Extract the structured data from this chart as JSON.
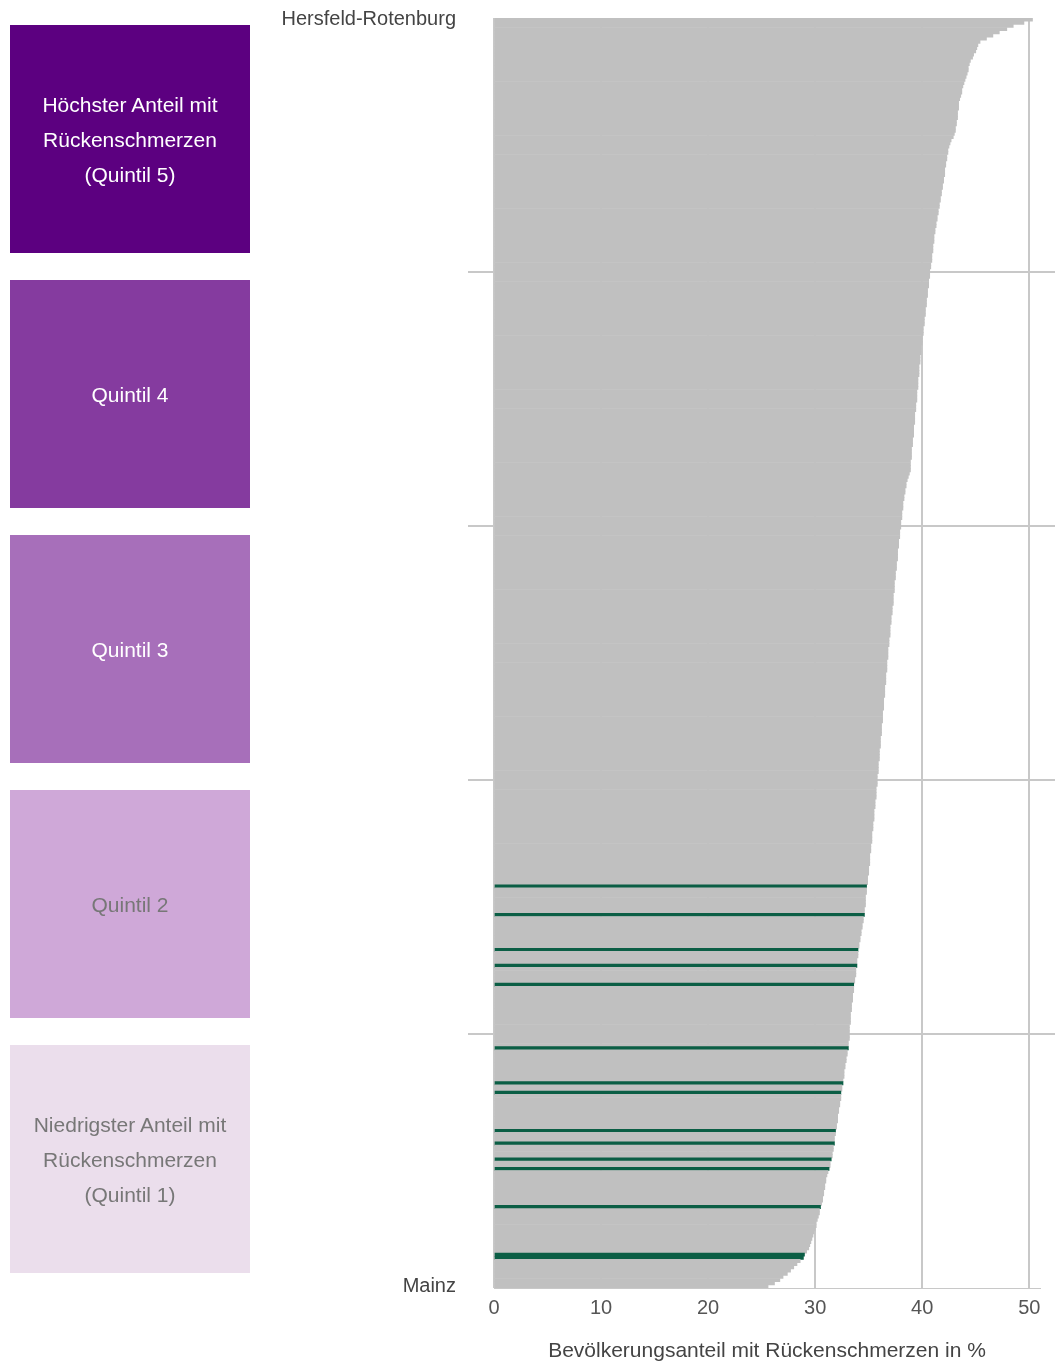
{
  "chart_data": {
    "type": "bar",
    "orientation": "horizontal",
    "xlabel": "Bevölkerungsanteil mit Rückenschmerzen in %",
    "categories": [
      "Hersfeld-Rotenburg",
      null,
      null,
      null,
      null,
      null,
      null,
      null,
      null,
      null,
      null,
      null,
      null,
      null,
      null,
      null,
      null,
      null,
      null,
      null,
      null,
      null,
      null,
      null,
      null,
      null,
      null,
      null,
      null,
      null,
      null,
      null,
      null,
      null,
      null,
      null,
      null,
      null,
      null,
      null,
      null,
      null,
      null,
      null,
      null,
      null,
      null,
      null,
      null,
      null,
      null,
      null,
      null,
      null,
      null,
      null,
      null,
      null,
      null,
      null,
      null,
      null,
      null,
      null,
      null,
      null,
      null,
      null,
      null,
      null,
      null,
      null,
      null,
      null,
      null,
      null,
      null,
      null,
      null,
      null,
      null,
      null,
      null,
      null,
      null,
      null,
      null,
      null,
      null,
      null,
      null,
      null,
      null,
      null,
      null,
      null,
      null,
      null,
      null,
      null,
      null,
      null,
      null,
      null,
      null,
      null,
      null,
      null,
      null,
      null,
      null,
      null,
      null,
      null,
      null,
      null,
      null,
      null,
      null,
      null,
      null,
      null,
      null,
      null,
      null,
      null,
      null,
      null,
      null,
      null,
      null,
      null,
      null,
      null,
      null,
      null,
      null,
      null,
      null,
      null,
      null,
      null,
      null,
      null,
      null,
      null,
      null,
      null,
      null,
      null,
      null,
      null,
      null,
      null,
      null,
      null,
      null,
      null,
      null,
      null,
      null,
      null,
      null,
      null,
      null,
      null,
      null,
      null,
      null,
      null,
      null,
      null,
      null,
      null,
      null,
      null,
      null,
      null,
      null,
      null,
      null,
      null,
      null,
      null,
      null,
      null,
      null,
      null,
      null,
      null,
      null,
      null,
      null,
      null,
      null,
      null,
      null,
      null,
      null,
      null,
      null,
      null,
      null,
      null,
      null,
      null,
      null,
      null,
      null,
      null,
      null,
      null,
      null,
      null,
      null,
      null,
      null,
      null,
      null,
      null,
      null,
      null,
      null,
      null,
      null,
      null,
      null,
      null,
      null,
      null,
      null,
      null,
      null,
      null,
      null,
      null,
      null,
      null,
      null,
      null,
      null,
      null,
      null,
      null,
      null,
      null,
      null,
      null,
      null,
      null,
      null,
      null,
      null,
      null,
      null,
      null,
      null,
      null,
      null,
      null,
      null,
      null,
      null,
      null,
      null,
      null,
      null,
      null,
      null,
      null,
      null,
      null,
      null,
      null,
      null,
      null,
      null,
      null,
      null,
      null,
      null,
      null,
      null,
      null,
      null,
      null,
      null,
      null,
      null,
      null,
      null,
      null,
      null,
      null,
      null,
      null,
      null,
      null,
      null,
      null,
      null,
      null,
      null,
      null,
      null,
      null,
      null,
      null,
      null,
      null,
      null,
      null,
      null,
      null,
      null,
      null,
      null,
      null,
      null,
      null,
      null,
      null,
      null,
      null,
      null,
      null,
      null,
      null,
      null,
      null,
      null,
      null,
      null,
      null,
      null,
      null,
      null,
      null,
      null,
      null,
      null,
      null,
      null,
      null,
      null,
      null,
      null,
      null,
      null,
      null,
      null,
      null,
      null,
      null,
      null,
      null,
      null,
      null,
      null,
      null,
      null,
      null,
      null,
      null,
      null,
      null,
      null,
      null,
      null,
      null,
      null,
      null,
      null,
      null,
      null,
      null,
      null,
      null,
      null,
      null,
      null,
      null,
      null,
      null,
      null,
      null,
      null,
      null,
      null,
      null,
      null,
      null,
      null,
      null,
      null,
      null,
      null,
      null,
      null,
      "Mainz"
    ],
    "values": [
      50.3,
      49.5,
      48.5,
      47.9,
      47.2,
      46.6,
      46.0,
      45.4,
      45.2,
      45.1,
      45.0,
      44.8,
      44.7,
      44.5,
      44.4,
      44.3,
      44.3,
      44.2,
      44.1,
      44.0,
      43.9,
      43.8,
      43.7,
      43.7,
      43.6,
      43.5,
      43.4,
      43.4,
      43.4,
      43.3,
      43.3,
      43.3,
      43.2,
      43.2,
      43.1,
      43.1,
      43.0,
      42.9,
      42.7,
      42.6,
      42.5,
      42.4,
      42.4,
      42.3,
      42.3,
      42.2,
      42.2,
      42.1,
      42.1,
      42.1,
      42.0,
      42.0,
      41.9,
      41.9,
      41.8,
      41.8,
      41.7,
      41.7,
      41.6,
      41.6,
      41.5,
      41.5,
      41.4,
      41.4,
      41.3,
      41.3,
      41.2,
      41.2,
      41.1,
      41.1,
      41.1,
      41.0,
      41.0,
      41.0,
      40.9,
      40.9,
      40.9,
      40.8,
      40.8,
      40.7,
      40.7,
      40.7,
      40.6,
      40.6,
      40.6,
      40.5,
      40.5,
      40.5,
      40.4,
      40.4,
      40.4,
      40.3,
      40.3,
      40.3,
      40.2,
      40.2,
      40.2,
      40.1,
      40.1,
      40.1,
      40.0,
      40.0,
      40.0,
      39.9,
      39.9,
      39.9,
      39.8,
      39.8,
      39.8,
      39.7,
      39.7,
      39.7,
      39.7,
      39.6,
      39.6,
      39.6,
      39.6,
      39.5,
      39.5,
      39.5,
      39.5,
      39.4,
      39.4,
      39.4,
      39.3,
      39.3,
      39.3,
      39.3,
      39.2,
      39.2,
      39.2,
      39.2,
      39.1,
      39.1,
      39.1,
      39.0,
      39.0,
      39.0,
      39.0,
      38.9,
      38.9,
      38.9,
      38.9,
      38.8,
      38.7,
      38.6,
      38.5,
      38.5,
      38.4,
      38.4,
      38.3,
      38.3,
      38.2,
      38.2,
      38.2,
      38.1,
      38.1,
      38.1,
      38.0,
      38.0,
      38.0,
      37.9,
      37.9,
      37.9,
      37.8,
      37.8,
      37.8,
      37.7,
      37.7,
      37.7,
      37.7,
      37.6,
      37.6,
      37.6,
      37.5,
      37.5,
      37.5,
      37.4,
      37.4,
      37.4,
      37.4,
      37.3,
      37.3,
      37.3,
      37.3,
      37.2,
      37.2,
      37.2,
      37.1,
      37.1,
      37.1,
      37.0,
      37.0,
      37.0,
      37.0,
      36.9,
      36.9,
      36.9,
      36.8,
      36.8,
      36.8,
      36.8,
      36.7,
      36.7,
      36.7,
      36.7,
      36.6,
      36.6,
      36.6,
      36.6,
      36.5,
      36.5,
      36.5,
      36.5,
      36.4,
      36.4,
      36.4,
      36.4,
      36.3,
      36.3,
      36.3,
      36.3,
      36.2,
      36.2,
      36.2,
      36.2,
      36.1,
      36.1,
      36.1,
      36.1,
      36.0,
      36.0,
      36.0,
      36.0,
      35.9,
      35.9,
      35.9,
      35.9,
      35.8,
      35.8,
      35.8,
      35.8,
      35.7,
      35.7,
      35.7,
      35.7,
      35.6,
      35.6,
      35.6,
      35.5,
      35.5,
      35.5,
      35.5,
      35.4,
      35.4,
      35.4,
      35.3,
      35.3,
      35.3,
      35.3,
      35.2,
      35.2,
      35.2,
      35.1,
      35.1,
      35.1,
      35.1,
      35.0,
      35.0,
      35.0,
      34.9,
      34.9,
      34.9,
      34.8,
      34.8,
      34.8,
      34.7,
      34.7,
      34.7,
      34.7,
      34.6,
      34.6,
      34.6,
      34.5,
      34.5,
      34.4,
      34.4,
      34.3,
      34.3,
      34.2,
      34.2,
      34.1,
      34.1,
      34.0,
      34.0,
      34.0,
      33.9,
      33.9,
      33.9,
      33.8,
      33.8,
      33.8,
      33.7,
      33.7,
      33.6,
      33.6,
      33.6,
      33.5,
      33.5,
      33.5,
      33.4,
      33.4,
      33.4,
      33.3,
      33.3,
      33.3,
      33.3,
      33.2,
      33.2,
      33.2,
      33.2,
      33.2,
      33.1,
      33.1,
      33.1,
      33.0,
      33.0,
      32.9,
      32.9,
      32.8,
      32.8,
      32.7,
      32.7,
      32.7,
      32.6,
      32.6,
      32.5,
      32.5,
      32.4,
      32.4,
      32.4,
      32.3,
      32.3,
      32.2,
      32.2,
      32.1,
      32.1,
      32.1,
      32.0,
      32.0,
      31.9,
      31.9,
      31.8,
      31.8,
      31.8,
      31.7,
      31.7,
      31.6,
      31.6,
      31.5,
      31.4,
      31.4,
      31.3,
      31.2,
      31.1,
      31.0,
      31.0,
      30.9,
      30.9,
      30.8,
      30.8,
      30.7,
      30.7,
      30.6,
      30.5,
      30.4,
      30.4,
      30.3,
      30.2,
      30.1,
      30.1,
      30.0,
      29.9,
      29.8,
      29.7,
      29.6,
      29.5,
      29.4,
      29.2,
      29.0,
      28.9,
      28.6,
      28.3,
      28.0,
      27.7,
      27.4,
      27.0,
      26.7,
      26.2,
      25.6
    ],
    "colors": [
      "#c0c0c0",
      "#c0c0c0",
      "#c0c0c0",
      "#c0c0c0",
      "#c0c0c0",
      "#c0c0c0",
      "#c0c0c0",
      "#c0c0c0",
      "#c0c0c0",
      "#c0c0c0",
      "#c0c0c0",
      "#c0c0c0",
      "#c0c0c0",
      "#c0c0c0",
      "#c0c0c0",
      "#c0c0c0",
      "#c0c0c0",
      "#c0c0c0",
      "#c0c0c0",
      "#c0c0c0",
      "#c0c0c0",
      "#c0c0c0",
      "#c0c0c0",
      "#c0c0c0",
      "#c0c0c0",
      "#c0c0c0",
      "#c0c0c0",
      "#c0c0c0",
      "#c0c0c0",
      "#c0c0c0",
      "#c0c0c0",
      "#c0c0c0",
      "#c0c0c0",
      "#c0c0c0",
      "#c0c0c0",
      "#c0c0c0",
      "#c0c0c0",
      "#c0c0c0",
      "#c0c0c0",
      "#c0c0c0",
      "#c0c0c0",
      "#c0c0c0",
      "#c0c0c0",
      "#c0c0c0",
      "#c0c0c0",
      "#c0c0c0",
      "#c0c0c0",
      "#c0c0c0",
      "#c0c0c0",
      "#c0c0c0",
      "#c0c0c0",
      "#c0c0c0",
      "#c0c0c0",
      "#c0c0c0",
      "#c0c0c0",
      "#c0c0c0",
      "#c0c0c0",
      "#c0c0c0",
      "#c0c0c0",
      "#c0c0c0",
      "#c0c0c0",
      "#c0c0c0",
      "#c0c0c0",
      "#c0c0c0",
      "#c0c0c0",
      "#c0c0c0",
      "#c0c0c0",
      "#c0c0c0",
      "#c0c0c0",
      "#c0c0c0",
      "#c0c0c0",
      "#c0c0c0",
      "#c0c0c0",
      "#c0c0c0",
      "#c0c0c0",
      "#c0c0c0",
      "#c0c0c0",
      "#c0c0c0",
      "#c0c0c0",
      "#c0c0c0",
      "#c0c0c0",
      "#c0c0c0",
      "#c0c0c0",
      "#c0c0c0",
      "#c0c0c0",
      "#c0c0c0",
      "#c0c0c0",
      "#c0c0c0",
      "#c0c0c0",
      "#c0c0c0",
      "#c0c0c0",
      "#c0c0c0",
      "#c0c0c0",
      "#c0c0c0",
      "#c0c0c0",
      "#c0c0c0",
      "#c0c0c0",
      "#c0c0c0",
      "#c0c0c0",
      "#c0c0c0",
      "#c0c0c0",
      "#c0c0c0",
      "#c0c0c0",
      "#c0c0c0",
      "#c0c0c0",
      "#c0c0c0",
      "#c0c0c0",
      "#c0c0c0",
      "#c0c0c0",
      "#c0c0c0",
      "#c0c0c0",
      "#c0c0c0",
      "#c0c0c0",
      "#c0c0c0",
      "#c0c0c0",
      "#c0c0c0",
      "#c0c0c0",
      "#c0c0c0",
      "#c0c0c0",
      "#c0c0c0",
      "#c0c0c0",
      "#c0c0c0",
      "#c0c0c0",
      "#c0c0c0",
      "#c0c0c0",
      "#c0c0c0",
      "#c0c0c0",
      "#c0c0c0",
      "#c0c0c0",
      "#c0c0c0",
      "#c0c0c0",
      "#c0c0c0",
      "#c0c0c0",
      "#c0c0c0",
      "#c0c0c0",
      "#c0c0c0",
      "#c0c0c0",
      "#c0c0c0",
      "#c0c0c0",
      "#c0c0c0",
      "#c0c0c0",
      "#c0c0c0",
      "#c0c0c0",
      "#c0c0c0",
      "#c0c0c0",
      "#c0c0c0",
      "#c0c0c0",
      "#c0c0c0",
      "#c0c0c0",
      "#c0c0c0",
      "#c0c0c0",
      "#c0c0c0",
      "#c0c0c0",
      "#c0c0c0",
      "#c0c0c0",
      "#c0c0c0",
      "#c0c0c0",
      "#c0c0c0",
      "#c0c0c0",
      "#c0c0c0",
      "#c0c0c0",
      "#c0c0c0",
      "#c0c0c0",
      "#c0c0c0",
      "#c0c0c0",
      "#c0c0c0",
      "#c0c0c0",
      "#c0c0c0",
      "#c0c0c0",
      "#c0c0c0",
      "#c0c0c0",
      "#c0c0c0",
      "#c0c0c0",
      "#c0c0c0",
      "#c0c0c0",
      "#c0c0c0",
      "#c0c0c0",
      "#c0c0c0",
      "#c0c0c0",
      "#c0c0c0",
      "#c0c0c0",
      "#c0c0c0",
      "#c0c0c0",
      "#c0c0c0",
      "#c0c0c0",
      "#c0c0c0",
      "#c0c0c0",
      "#c0c0c0",
      "#c0c0c0",
      "#c0c0c0",
      "#c0c0c0",
      "#c0c0c0",
      "#c0c0c0",
      "#c0c0c0",
      "#c0c0c0",
      "#c0c0c0",
      "#c0c0c0",
      "#c0c0c0",
      "#c0c0c0",
      "#c0c0c0",
      "#c0c0c0",
      "#c0c0c0",
      "#c0c0c0",
      "#c0c0c0",
      "#c0c0c0",
      "#c0c0c0",
      "#c0c0c0",
      "#c0c0c0",
      "#c0c0c0",
      "#c0c0c0",
      "#c0c0c0",
      "#c0c0c0",
      "#c0c0c0",
      "#c0c0c0",
      "#c0c0c0",
      "#c0c0c0",
      "#c0c0c0",
      "#c0c0c0",
      "#c0c0c0",
      "#c0c0c0",
      "#c0c0c0",
      "#c0c0c0",
      "#c0c0c0",
      "#c0c0c0",
      "#c0c0c0",
      "#c0c0c0",
      "#c0c0c0",
      "#c0c0c0",
      "#c0c0c0",
      "#c0c0c0",
      "#c0c0c0",
      "#c0c0c0",
      "#c0c0c0",
      "#c0c0c0",
      "#c0c0c0",
      "#c0c0c0",
      "#c0c0c0",
      "#c0c0c0",
      "#c0c0c0",
      "#c0c0c0",
      "#c0c0c0",
      "#c0c0c0",
      "#c0c0c0",
      "#c0c0c0",
      "#c0c0c0",
      "#c0c0c0",
      "#c0c0c0",
      "#c0c0c0",
      "#c0c0c0",
      "#c0c0c0",
      "#c0c0c0",
      "#c0c0c0",
      "#c0c0c0",
      "#c0c0c0",
      "#c0c0c0",
      "#c0c0c0",
      "#c0c0c0",
      "#c0c0c0",
      "#c0c0c0",
      "#c0c0c0",
      "#c0c0c0",
      "#c0c0c0",
      "#c0c0c0",
      "#c0c0c0",
      "#c0c0c0",
      "#c0c0c0",
      "#c0c0c0",
      "#c0c0c0",
      "#c0c0c0",
      "#c0c0c0",
      "#c0c0c0",
      "#c0c0c0",
      "#c0c0c0",
      "#0b5e45",
      "#c0c0c0",
      "#c0c0c0",
      "#c0c0c0",
      "#c0c0c0",
      "#c0c0c0",
      "#c0c0c0",
      "#c0c0c0",
      "#c0c0c0",
      "#0b5e45",
      "#c0c0c0",
      "#c0c0c0",
      "#c0c0c0",
      "#c0c0c0",
      "#c0c0c0",
      "#c0c0c0",
      "#c0c0c0",
      "#c0c0c0",
      "#c0c0c0",
      "#c0c0c0",
      "#0b5e45",
      "#c0c0c0",
      "#c0c0c0",
      "#c0c0c0",
      "#c0c0c0",
      "#0b5e45",
      "#c0c0c0",
      "#c0c0c0",
      "#c0c0c0",
      "#c0c0c0",
      "#c0c0c0",
      "#0b5e45",
      "#c0c0c0",
      "#c0c0c0",
      "#c0c0c0",
      "#c0c0c0",
      "#c0c0c0",
      "#c0c0c0",
      "#c0c0c0",
      "#c0c0c0",
      "#c0c0c0",
      "#c0c0c0",
      "#c0c0c0",
      "#c0c0c0",
      "#c0c0c0",
      "#c0c0c0",
      "#c0c0c0",
      "#c0c0c0",
      "#c0c0c0",
      "#c0c0c0",
      "#c0c0c0",
      "#0b5e45",
      "#c0c0c0",
      "#c0c0c0",
      "#c0c0c0",
      "#c0c0c0",
      "#c0c0c0",
      "#c0c0c0",
      "#c0c0c0",
      "#c0c0c0",
      "#c0c0c0",
      "#c0c0c0",
      "#0b5e45",
      "#c0c0c0",
      "#c0c0c0",
      "#0b5e45",
      "#c0c0c0",
      "#c0c0c0",
      "#c0c0c0",
      "#c0c0c0",
      "#c0c0c0",
      "#c0c0c0",
      "#c0c0c0",
      "#c0c0c0",
      "#c0c0c0",
      "#c0c0c0",
      "#c0c0c0",
      "#0b5e45",
      "#c0c0c0",
      "#c0c0c0",
      "#c0c0c0",
      "#0b5e45",
      "#c0c0c0",
      "#c0c0c0",
      "#c0c0c0",
      "#c0c0c0",
      "#0b5e45",
      "#c0c0c0",
      "#c0c0c0",
      "#0b5e45",
      "#c0c0c0",
      "#c0c0c0",
      "#c0c0c0",
      "#c0c0c0",
      "#c0c0c0",
      "#c0c0c0",
      "#c0c0c0",
      "#c0c0c0",
      "#c0c0c0",
      "#c0c0c0",
      "#c0c0c0",
      "#0b5e45",
      "#c0c0c0",
      "#c0c0c0",
      "#c0c0c0",
      "#c0c0c0",
      "#c0c0c0",
      "#c0c0c0",
      "#c0c0c0",
      "#c0c0c0",
      "#c0c0c0",
      "#c0c0c0",
      "#c0c0c0",
      "#c0c0c0",
      "#c0c0c0",
      "#c0c0c0",
      "#0b5e45",
      "#0b5e45",
      "#c0c0c0",
      "#c0c0c0",
      "#c0c0c0",
      "#c0c0c0",
      "#c0c0c0",
      "#c0c0c0",
      "#c0c0c0",
      "#c0c0c0",
      "#c0c0c0"
    ],
    "xlim": [
      0,
      51
    ],
    "xticks": [
      0,
      10,
      20,
      30,
      40,
      50
    ],
    "grid": "x",
    "annotations": [
      "Höchster Anteil mit Rückenschmerzen (Quintil 5)",
      "Quintil 4",
      "Quintil 3",
      "Quintil 2",
      "Niedrigster Anteil mit Rückenschmerzen (Quintil 1)"
    ]
  }
}
